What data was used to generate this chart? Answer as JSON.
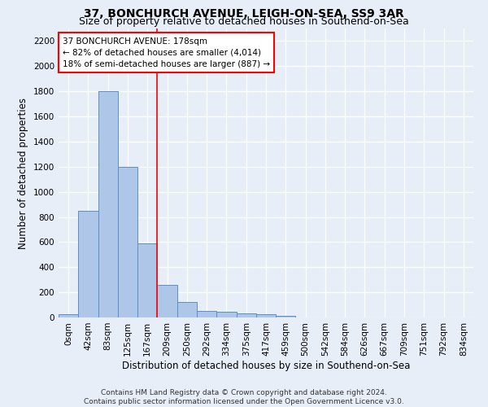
{
  "title1": "37, BONCHURCH AVENUE, LEIGH-ON-SEA, SS9 3AR",
  "title2": "Size of property relative to detached houses in Southend-on-Sea",
  "xlabel": "Distribution of detached houses by size in Southend-on-Sea",
  "ylabel": "Number of detached properties",
  "bar_labels": [
    "0sqm",
    "42sqm",
    "83sqm",
    "125sqm",
    "167sqm",
    "209sqm",
    "250sqm",
    "292sqm",
    "334sqm",
    "375sqm",
    "417sqm",
    "459sqm",
    "500sqm",
    "542sqm",
    "584sqm",
    "626sqm",
    "667sqm",
    "709sqm",
    "751sqm",
    "792sqm",
    "834sqm"
  ],
  "bar_heights": [
    25,
    850,
    1800,
    1200,
    590,
    260,
    125,
    50,
    48,
    33,
    25,
    15,
    0,
    0,
    0,
    0,
    0,
    0,
    0,
    0,
    0
  ],
  "bar_color": "#aec6e8",
  "bar_edge_color": "#5b8fc9",
  "ylim": [
    0,
    2300
  ],
  "yticks": [
    0,
    200,
    400,
    600,
    800,
    1000,
    1200,
    1400,
    1600,
    1800,
    2000,
    2200
  ],
  "red_line_x": 4.5,
  "annotation_title": "37 BONCHURCH AVENUE: 178sqm",
  "annotation_line1": "← 82% of detached houses are smaller (4,014)",
  "annotation_line2": "18% of semi-detached houses are larger (887) →",
  "footer1": "Contains HM Land Registry data © Crown copyright and database right 2024.",
  "footer2": "Contains public sector information licensed under the Open Government Licence v3.0.",
  "bg_color": "#e8eef8",
  "plot_bg_color": "#e8eef8",
  "grid_color": "#ffffff",
  "title1_fontsize": 10,
  "title2_fontsize": 9,
  "axis_label_fontsize": 8.5,
  "tick_fontsize": 7.5,
  "footer_fontsize": 6.5
}
